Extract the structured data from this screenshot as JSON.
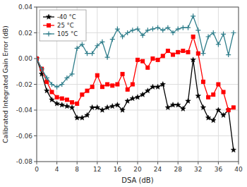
{
  "chart_data": {
    "type": "line",
    "xlabel": "DSA (dB)",
    "ylabel": "Calibrated Integrated Gain Error (dB)",
    "x": [
      0,
      1,
      2,
      3,
      4,
      5,
      6,
      7,
      8,
      9,
      10,
      11,
      12,
      13,
      14,
      15,
      16,
      17,
      18,
      19,
      20,
      21,
      22,
      23,
      24,
      25,
      26,
      27,
      28,
      29,
      30,
      31,
      32,
      33,
      34,
      35,
      36,
      37,
      38,
      39
    ],
    "series": [
      {
        "name": "-40 °C",
        "color": "#000000",
        "marker": "star",
        "values": [
          0.0,
          -0.012,
          -0.025,
          -0.032,
          -0.035,
          -0.036,
          -0.037,
          -0.038,
          -0.046,
          -0.046,
          -0.044,
          -0.038,
          -0.038,
          -0.04,
          -0.038,
          -0.037,
          -0.036,
          -0.04,
          -0.033,
          -0.031,
          -0.03,
          -0.028,
          -0.025,
          -0.022,
          -0.022,
          -0.02,
          -0.038,
          -0.036,
          -0.036,
          -0.039,
          -0.033,
          -0.001,
          -0.029,
          -0.038,
          -0.046,
          -0.048,
          -0.04,
          -0.044,
          -0.04,
          -0.071
        ]
      },
      {
        "name": "25 °C",
        "color": "#ff0000",
        "marker": "square",
        "values": [
          0.0,
          -0.008,
          -0.018,
          -0.026,
          -0.03,
          -0.031,
          -0.032,
          -0.034,
          -0.035,
          -0.028,
          -0.025,
          -0.022,
          -0.013,
          -0.022,
          -0.02,
          -0.021,
          -0.02,
          -0.012,
          -0.024,
          -0.02,
          -0.001,
          -0.002,
          -0.007,
          0.0,
          -0.001,
          0.002,
          0.006,
          0.003,
          0.005,
          0.006,
          0.005,
          0.017,
          0.004,
          -0.018,
          -0.03,
          -0.028,
          -0.02,
          -0.026,
          -0.04,
          -0.038
        ]
      },
      {
        "name": "105 °C",
        "color": "#2E7D8A",
        "marker": "plus",
        "values": [
          0.0,
          -0.008,
          -0.015,
          -0.02,
          -0.022,
          -0.02,
          -0.015,
          -0.012,
          0.008,
          0.011,
          0.004,
          0.004,
          0.01,
          0.013,
          0.001,
          0.015,
          0.023,
          0.017,
          0.02,
          0.022,
          0.023,
          0.018,
          0.022,
          0.023,
          0.024,
          0.022,
          0.024,
          0.02,
          0.023,
          0.024,
          0.024,
          0.033,
          0.022,
          0.004,
          0.017,
          0.02,
          0.011,
          0.019,
          0.003,
          0.02
        ]
      }
    ],
    "xlim": [
      0,
      40
    ],
    "ylim": [
      -0.08,
      0.04
    ],
    "xticks": [
      0,
      4,
      8,
      12,
      16,
      20,
      24,
      28,
      32,
      36,
      40
    ],
    "yticks": [
      -0.08,
      -0.06,
      -0.04,
      -0.02,
      {
        "value": 0,
        "label": "0.00"
      },
      0.02,
      0.04
    ],
    "grid": true,
    "legend": "upper left"
  }
}
